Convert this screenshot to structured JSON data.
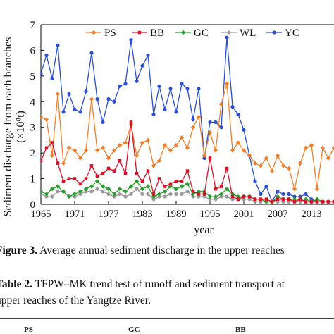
{
  "chart_data": {
    "type": "line",
    "xlabel": "year",
    "ylabel": "Sediment discharge from each branches",
    "ylabel_unit": "(×10⁸t)",
    "xlim": [
      1965,
      2017
    ],
    "ylim": [
      0,
      7
    ],
    "x_ticks": [
      "1965",
      "1971",
      "1977",
      "1983",
      "1989",
      "1995",
      "2001",
      "2007",
      "2013"
    ],
    "y_ticks": [
      "0",
      "1",
      "2",
      "3",
      "4",
      "5",
      "6",
      "7"
    ],
    "legend_position": "top",
    "x": [
      1965,
      1966,
      1967,
      1968,
      1969,
      1970,
      1971,
      1972,
      1973,
      1974,
      1975,
      1976,
      1977,
      1978,
      1979,
      1980,
      1981,
      1982,
      1983,
      1984,
      1985,
      1986,
      1987,
      1988,
      1989,
      1990,
      1991,
      1992,
      1993,
      1994,
      1995,
      1996,
      1997,
      1998,
      1999,
      2000,
      2001,
      2002,
      2003,
      2004,
      2005,
      2006,
      2007,
      2008,
      2009,
      2010,
      2011,
      2012,
      2013,
      2014,
      2015,
      2016,
      2017
    ],
    "series": [
      {
        "name": "PS",
        "color": "#f07f2a",
        "marker": "diamond",
        "values": [
          3.4,
          3.3,
          1.9,
          4.3,
          1.6,
          2.2,
          2.1,
          1.8,
          2.1,
          4.1,
          2.1,
          2.2,
          1.8,
          2.1,
          2.3,
          2.4,
          3.1,
          1.9,
          2.4,
          2.5,
          1.5,
          1.7,
          2.3,
          2.1,
          2.3,
          2.6,
          2.2,
          3.0,
          3.4,
          1.9,
          2.8,
          2.1,
          3.9,
          4.7,
          2.1,
          2.4,
          2.1,
          1.9,
          1.6,
          1.5,
          1.8,
          1.3,
          1.9,
          1.5,
          1.4,
          0.6,
          1.6,
          2.2,
          2.3,
          0.6,
          2.2,
          1.8,
          2.2
        ]
      },
      {
        "name": "BB",
        "color": "#d4142a",
        "marker": "square",
        "values": [
          1.7,
          2.2,
          2.4,
          1.6,
          0.9,
          1.0,
          1.0,
          0.8,
          1.0,
          1.5,
          1.1,
          1.2,
          1.4,
          1.3,
          1.7,
          1.2,
          3.2,
          1.2,
          0.9,
          1.3,
          0.4,
          1.0,
          0.7,
          0.8,
          0.9,
          0.9,
          1.3,
          0.5,
          0.4,
          0.4,
          1.8,
          0.6,
          0.7,
          1.4,
          0.3,
          0.2,
          0.3,
          0.3,
          0.2,
          0.2,
          0.2,
          0.1,
          0.2,
          0.2,
          0.2,
          0.1,
          0.2,
          0.1,
          0.1,
          0.1,
          0.1,
          0.1,
          0.1
        ]
      },
      {
        "name": "GC",
        "color": "#2c9e2f",
        "marker": "diamond",
        "values": [
          0.5,
          0.4,
          0.6,
          0.7,
          0.5,
          0.3,
          0.4,
          0.5,
          0.6,
          0.7,
          0.9,
          0.7,
          0.6,
          0.4,
          0.6,
          0.5,
          0.7,
          0.9,
          0.6,
          0.7,
          0.3,
          0.4,
          0.5,
          0.7,
          0.6,
          0.7,
          0.8,
          0.4,
          0.5,
          0.5,
          0.3,
          0.3,
          0.4,
          0.6,
          0.4,
          0.3,
          0.3,
          0.3,
          0.2,
          0.2,
          0.1,
          0.1,
          0.3,
          0.2,
          0.2,
          0.2,
          0.2,
          0.2,
          0.1,
          0.2,
          0.1,
          0.1,
          0.1
        ]
      },
      {
        "name": "WL",
        "color": "#9a9a9a",
        "marker": "circle",
        "values": [
          0.4,
          0.3,
          0.3,
          0.5,
          0.5,
          0.3,
          0.3,
          0.4,
          0.5,
          0.5,
          0.6,
          0.5,
          0.4,
          0.3,
          0.4,
          0.3,
          0.4,
          0.6,
          0.4,
          0.4,
          0.2,
          0.3,
          0.3,
          0.4,
          0.4,
          0.4,
          0.5,
          0.3,
          0.3,
          0.3,
          0.2,
          0.2,
          0.3,
          0.3,
          0.2,
          0.2,
          0.2,
          0.2,
          0.1,
          0.1,
          0.1,
          0.1,
          0.1,
          0.1,
          0.1,
          0.1,
          0.1,
          0.1,
          0.1,
          0.1,
          0.1,
          0.1,
          0.1
        ]
      },
      {
        "name": "YC",
        "color": "#2a4fd0",
        "marker": "circle",
        "values": [
          5.1,
          5.8,
          4.9,
          6.2,
          3.6,
          4.3,
          3.7,
          3.6,
          4.4,
          5.9,
          4.1,
          3.2,
          4.1,
          4.0,
          4.6,
          4.7,
          6.4,
          4.8,
          5.4,
          5.8,
          3.5,
          4.6,
          3.7,
          4.5,
          3.6,
          4.7,
          4.5,
          3.3,
          4.5,
          1.8,
          3.2,
          3.2,
          3.0,
          6.5,
          3.8,
          3.5,
          2.9,
          1.9,
          0.9,
          0.4,
          0.7,
          0.1,
          0.5,
          0.4,
          0.4,
          0.3,
          0.3,
          0.4,
          0.2,
          0.1,
          0.1,
          0.1,
          0.1
        ]
      }
    ]
  },
  "captions": {
    "figure_label": "Figure 3.",
    "figure_text": " Average annual sediment discharge in the upper reaches",
    "table_label": "Table 2.",
    "table_text_line1": " TFPW–MK trend test of runoff and sediment transport at",
    "table_text_line2": "upper reaches of the Yangtze River."
  },
  "table_header": {
    "col1": "PS",
    "col2": "GC",
    "col3": "BB"
  }
}
